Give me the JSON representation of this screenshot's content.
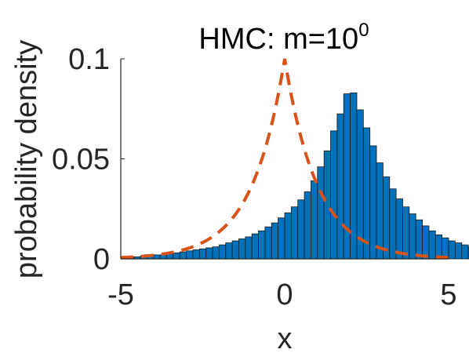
{
  "chart_data": {
    "type": "bar",
    "title_main": "HMC: m=10",
    "title_superscript": "0",
    "xlabel": "x",
    "ylabel": "probability density",
    "xlim": [
      -5,
      5
    ],
    "ylim": [
      0,
      0.1
    ],
    "xticks": [
      "-5",
      "0",
      "5"
    ],
    "yticks": [
      "0",
      "0.05",
      "0.1"
    ],
    "grid": false,
    "bin_edges_start": -4.8,
    "bin_width": 0.2,
    "values": [
      0.001,
      0.001,
      0.0015,
      0.0015,
      0.002,
      0.002,
      0.0025,
      0.003,
      0.0035,
      0.004,
      0.0045,
      0.005,
      0.0055,
      0.006,
      0.007,
      0.008,
      0.009,
      0.01,
      0.011,
      0.0125,
      0.014,
      0.016,
      0.018,
      0.0205,
      0.023,
      0.026,
      0.0295,
      0.0335,
      0.039,
      0.046,
      0.054,
      0.064,
      0.0725,
      0.0825,
      0.083,
      0.0745,
      0.0655,
      0.0565,
      0.048,
      0.041,
      0.035,
      0.03,
      0.026,
      0.0225,
      0.0195,
      0.0165,
      0.014,
      0.012,
      0.0105,
      0.009,
      0.008,
      0.007,
      0.006,
      0.005,
      0.0045,
      0.0035,
      0.003,
      0.0025,
      0.002,
      0.0015,
      0.0015,
      0.001,
      0.001
    ],
    "reference_curve": {
      "style": "dashed",
      "formula": "laplace",
      "location": 0,
      "scale": 0.2,
      "peak": 0.1
    },
    "colors": {
      "bars": "#0072BD",
      "bar_edge": "#1a1a1a",
      "curve": "#D95319",
      "axis": "#262626"
    }
  }
}
